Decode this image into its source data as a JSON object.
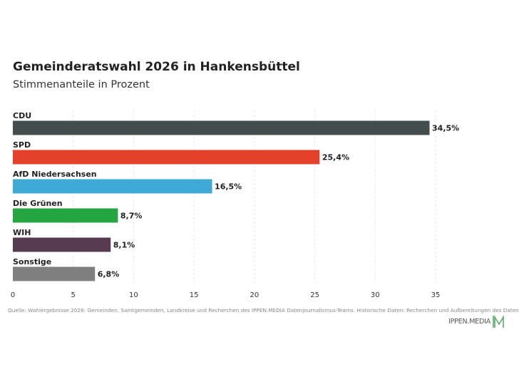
{
  "header": {
    "title": "Gemeinderatswahl 2026 in Hankensbüttel",
    "subtitle": "Stimmenanteile in Prozent"
  },
  "chart_data": {
    "type": "bar",
    "orientation": "horizontal",
    "categories": [
      "CDU",
      "SPD",
      "AfD Niedersachsen",
      "Die Grünen",
      "WIH",
      "Sonstige"
    ],
    "values": [
      34.5,
      25.4,
      16.5,
      8.7,
      8.1,
      6.8
    ],
    "value_labels": [
      "34,5%",
      "25,4%",
      "16,5%",
      "8,7%",
      "8,1%",
      "6,8%"
    ],
    "colors": [
      "#434d4e",
      "#e4412a",
      "#3eaad5",
      "#23a541",
      "#553a50",
      "#7f7f7f"
    ],
    "xlim": [
      0,
      35.5
    ],
    "xticks": [
      0,
      5,
      10,
      15,
      20,
      25,
      30,
      35
    ],
    "xtick_labels": [
      "0",
      "5",
      "10",
      "15",
      "20",
      "25",
      "30",
      "35"
    ],
    "grid": "vertical-dashed",
    "legend": "none"
  },
  "footer": {
    "source": "Quelle: Wahlergebnisse 2026: Gemeinden, Samtgemeinden, Landkreise und Recherchen des IPPEN.MEDIA Datenjournalismus-Teams. Historische Daten: Recherchen und Aufbereitungen des Datenjournalismus-Teams",
    "logo_text": "IPPEN.MEDIA",
    "logo_color": "#5aaa6a"
  }
}
